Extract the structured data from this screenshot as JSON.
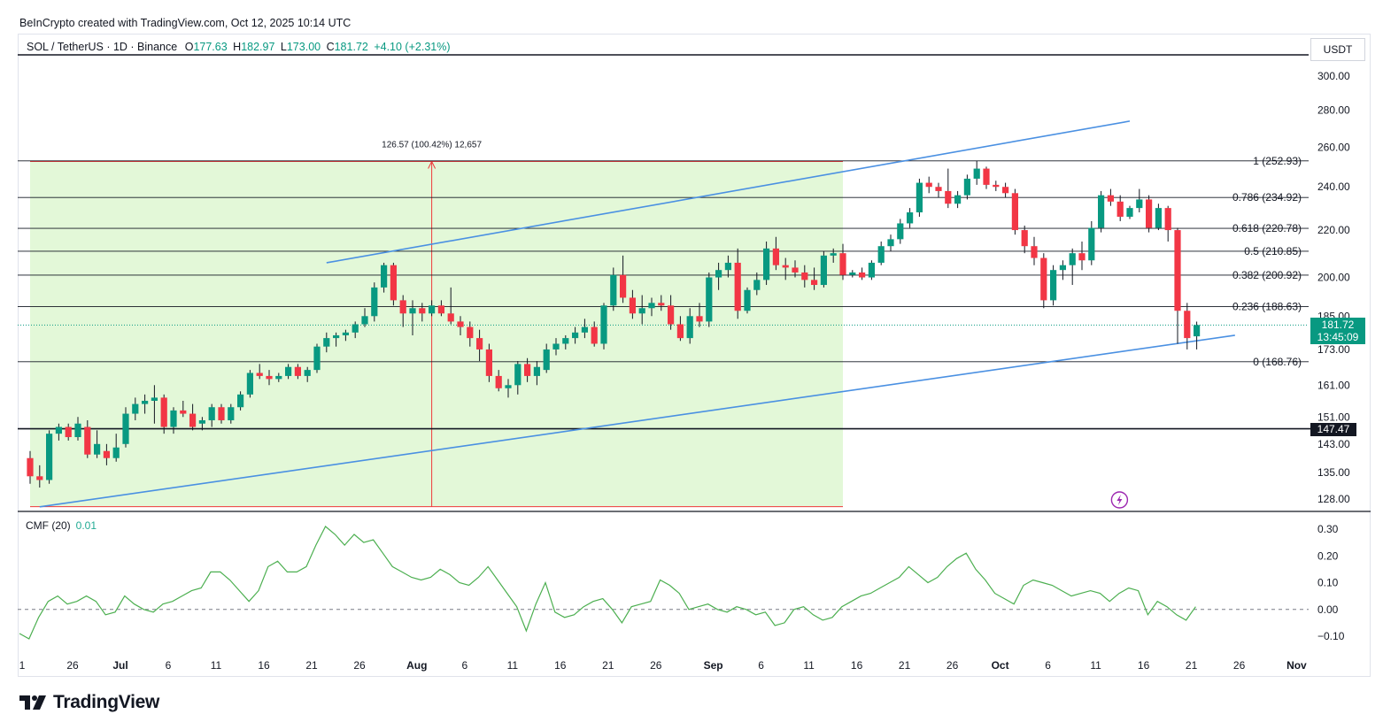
{
  "header": {
    "credit": "BeInCrypto created with TradingView.com, Oct 12, 2025 10:14 UTC",
    "symbol": "SOL / TetherUS · 1D · Binance",
    "open_label": "O",
    "open": "177.63",
    "high_label": "H",
    "high": "182.97",
    "low_label": "L",
    "low": "173.00",
    "close_label": "C",
    "close": "181.72",
    "change": "+4.10 (+2.31%)",
    "currency": "USDT"
  },
  "colors": {
    "up": "#089981",
    "down": "#f23645",
    "up_wick": "#131722",
    "down_wick": "#131722",
    "channel": "#4a90e2",
    "range_fill": "#e3f8d8",
    "range_line": "#ef3a3a",
    "cmf_line": "#4caf50",
    "last_price_bg": "#089981",
    "support_bg": "#131722"
  },
  "chart_data": [
    {
      "type": "candlestick",
      "title": "SOL / TetherUS · 1D · Binance",
      "y_scale": "log",
      "ylim": [
        124,
        318
      ],
      "y_ticks": [
        "300.00",
        "280.00",
        "260.00",
        "240.00",
        "220.00",
        "200.00",
        "185.00",
        "173.00",
        "161.00",
        "151.00",
        "143.00",
        "135.00",
        "128.00"
      ],
      "x_ticks": [
        "1",
        "26",
        "Jul",
        "6",
        "11",
        "16",
        "21",
        "26",
        "Aug",
        "6",
        "11",
        "16",
        "21",
        "26",
        "Sep",
        "6",
        "11",
        "16",
        "21",
        "26",
        "Oct",
        "6",
        "11",
        "16",
        "21",
        "26",
        "Nov"
      ],
      "x_start": "2025-06-21",
      "candles": [
        {
          "o": 139,
          "h": 141,
          "l": 132,
          "c": 134
        },
        {
          "o": 134,
          "h": 137,
          "l": 131,
          "c": 133
        },
        {
          "o": 133,
          "h": 147,
          "l": 132,
          "c": 146
        },
        {
          "o": 146,
          "h": 149,
          "l": 144,
          "c": 148
        },
        {
          "o": 148,
          "h": 149,
          "l": 144,
          "c": 145
        },
        {
          "o": 145,
          "h": 151,
          "l": 144,
          "c": 149
        },
        {
          "o": 148,
          "h": 150,
          "l": 139,
          "c": 140
        },
        {
          "o": 140,
          "h": 147,
          "l": 139,
          "c": 143
        },
        {
          "o": 141,
          "h": 143,
          "l": 137,
          "c": 139
        },
        {
          "o": 139,
          "h": 146,
          "l": 138,
          "c": 142
        },
        {
          "o": 143,
          "h": 154,
          "l": 142,
          "c": 152
        },
        {
          "o": 152,
          "h": 157,
          "l": 150,
          "c": 155
        },
        {
          "o": 155,
          "h": 158,
          "l": 152,
          "c": 156
        },
        {
          "o": 156,
          "h": 161,
          "l": 149,
          "c": 157
        },
        {
          "o": 157,
          "h": 158,
          "l": 146,
          "c": 148
        },
        {
          "o": 148,
          "h": 154,
          "l": 146,
          "c": 153
        },
        {
          "o": 153,
          "h": 156,
          "l": 151,
          "c": 152
        },
        {
          "o": 152,
          "h": 155,
          "l": 147,
          "c": 148
        },
        {
          "o": 149,
          "h": 151,
          "l": 147,
          "c": 150
        },
        {
          "o": 150,
          "h": 155,
          "l": 148,
          "c": 154
        },
        {
          "o": 154,
          "h": 155,
          "l": 149,
          "c": 150
        },
        {
          "o": 150,
          "h": 155,
          "l": 149,
          "c": 154
        },
        {
          "o": 154,
          "h": 159,
          "l": 153,
          "c": 158
        },
        {
          "o": 158,
          "h": 166,
          "l": 157,
          "c": 165
        },
        {
          "o": 165,
          "h": 168,
          "l": 163,
          "c": 164
        },
        {
          "o": 164,
          "h": 166,
          "l": 161,
          "c": 163
        },
        {
          "o": 163,
          "h": 165,
          "l": 162,
          "c": 164
        },
        {
          "o": 164,
          "h": 168,
          "l": 163,
          "c": 167
        },
        {
          "o": 167,
          "h": 168,
          "l": 163,
          "c": 164
        },
        {
          "o": 164,
          "h": 167,
          "l": 162,
          "c": 166
        },
        {
          "o": 166,
          "h": 175,
          "l": 165,
          "c": 174
        },
        {
          "o": 174,
          "h": 179,
          "l": 172,
          "c": 177
        },
        {
          "o": 177,
          "h": 179,
          "l": 174,
          "c": 178
        },
        {
          "o": 178,
          "h": 180,
          "l": 176,
          "c": 179
        },
        {
          "o": 179,
          "h": 183,
          "l": 177,
          "c": 182
        },
        {
          "o": 182,
          "h": 188,
          "l": 181,
          "c": 185
        },
        {
          "o": 185,
          "h": 198,
          "l": 183,
          "c": 196
        },
        {
          "o": 196,
          "h": 206,
          "l": 194,
          "c": 205
        },
        {
          "o": 205,
          "h": 206,
          "l": 189,
          "c": 191
        },
        {
          "o": 191,
          "h": 193,
          "l": 181,
          "c": 186
        },
        {
          "o": 186,
          "h": 191,
          "l": 178,
          "c": 188
        },
        {
          "o": 188,
          "h": 190,
          "l": 183,
          "c": 186
        },
        {
          "o": 186,
          "h": 191,
          "l": 185,
          "c": 189
        },
        {
          "o": 189,
          "h": 191,
          "l": 185,
          "c": 186
        },
        {
          "o": 186,
          "h": 196,
          "l": 182,
          "c": 183
        },
        {
          "o": 183,
          "h": 185,
          "l": 178,
          "c": 181
        },
        {
          "o": 181,
          "h": 183,
          "l": 174,
          "c": 177
        },
        {
          "o": 177,
          "h": 180,
          "l": 169,
          "c": 173
        },
        {
          "o": 173,
          "h": 175,
          "l": 162,
          "c": 164
        },
        {
          "o": 164,
          "h": 166,
          "l": 159,
          "c": 160
        },
        {
          "o": 160,
          "h": 163,
          "l": 157,
          "c": 161
        },
        {
          "o": 161,
          "h": 169,
          "l": 158,
          "c": 168
        },
        {
          "o": 168,
          "h": 170,
          "l": 162,
          "c": 164
        },
        {
          "o": 164,
          "h": 169,
          "l": 161,
          "c": 167
        },
        {
          "o": 166,
          "h": 175,
          "l": 165,
          "c": 173
        },
        {
          "o": 173,
          "h": 177,
          "l": 171,
          "c": 175
        },
        {
          "o": 175,
          "h": 178,
          "l": 173,
          "c": 177
        },
        {
          "o": 177,
          "h": 181,
          "l": 175,
          "c": 179
        },
        {
          "o": 179,
          "h": 184,
          "l": 177,
          "c": 181
        },
        {
          "o": 181,
          "h": 183,
          "l": 174,
          "c": 175
        },
        {
          "o": 175,
          "h": 190,
          "l": 173,
          "c": 189
        },
        {
          "o": 189,
          "h": 204,
          "l": 187,
          "c": 201
        },
        {
          "o": 201,
          "h": 209,
          "l": 190,
          "c": 192
        },
        {
          "o": 192,
          "h": 195,
          "l": 184,
          "c": 186
        },
        {
          "o": 186,
          "h": 193,
          "l": 182,
          "c": 188
        },
        {
          "o": 188,
          "h": 192,
          "l": 185,
          "c": 190
        },
        {
          "o": 190,
          "h": 193,
          "l": 187,
          "c": 189
        },
        {
          "o": 189,
          "h": 193,
          "l": 180,
          "c": 182
        },
        {
          "o": 182,
          "h": 185,
          "l": 176,
          "c": 177
        },
        {
          "o": 177,
          "h": 188,
          "l": 175,
          "c": 185
        },
        {
          "o": 185,
          "h": 190,
          "l": 181,
          "c": 183
        },
        {
          "o": 183,
          "h": 202,
          "l": 181,
          "c": 200
        },
        {
          "o": 200,
          "h": 206,
          "l": 195,
          "c": 203
        },
        {
          "o": 203,
          "h": 209,
          "l": 200,
          "c": 206
        },
        {
          "o": 206,
          "h": 212,
          "l": 184,
          "c": 187
        },
        {
          "o": 187,
          "h": 196,
          "l": 186,
          "c": 195
        },
        {
          "o": 195,
          "h": 202,
          "l": 193,
          "c": 199
        },
        {
          "o": 199,
          "h": 215,
          "l": 197,
          "c": 212
        },
        {
          "o": 212,
          "h": 217,
          "l": 203,
          "c": 205
        },
        {
          "o": 205,
          "h": 208,
          "l": 199,
          "c": 204
        },
        {
          "o": 204,
          "h": 207,
          "l": 200,
          "c": 202
        },
        {
          "o": 202,
          "h": 205,
          "l": 196,
          "c": 199
        },
        {
          "o": 199,
          "h": 204,
          "l": 195,
          "c": 197
        },
        {
          "o": 197,
          "h": 211,
          "l": 196,
          "c": 209
        },
        {
          "o": 209,
          "h": 212,
          "l": 206,
          "c": 210
        },
        {
          "o": 210,
          "h": 214,
          "l": 199,
          "c": 201
        },
        {
          "o": 201,
          "h": 203,
          "l": 200,
          "c": 202
        },
        {
          "o": 202,
          "h": 204,
          "l": 199,
          "c": 200
        },
        {
          "o": 200,
          "h": 207,
          "l": 199,
          "c": 206
        },
        {
          "o": 206,
          "h": 215,
          "l": 205,
          "c": 213
        },
        {
          "o": 213,
          "h": 218,
          "l": 211,
          "c": 216
        },
        {
          "o": 216,
          "h": 225,
          "l": 214,
          "c": 223
        },
        {
          "o": 223,
          "h": 230,
          "l": 221,
          "c": 228
        },
        {
          "o": 228,
          "h": 244,
          "l": 226,
          "c": 242
        },
        {
          "o": 242,
          "h": 245,
          "l": 237,
          "c": 240
        },
        {
          "o": 240,
          "h": 242,
          "l": 235,
          "c": 238
        },
        {
          "o": 238,
          "h": 249,
          "l": 230,
          "c": 232
        },
        {
          "o": 232,
          "h": 238,
          "l": 230,
          "c": 236
        },
        {
          "o": 236,
          "h": 246,
          "l": 234,
          "c": 244
        },
        {
          "o": 244,
          "h": 253,
          "l": 241,
          "c": 249
        },
        {
          "o": 249,
          "h": 250,
          "l": 239,
          "c": 241
        },
        {
          "o": 241,
          "h": 243,
          "l": 238,
          "c": 240
        },
        {
          "o": 240,
          "h": 242,
          "l": 235,
          "c": 237
        },
        {
          "o": 237,
          "h": 239,
          "l": 218,
          "c": 220
        },
        {
          "o": 220,
          "h": 222,
          "l": 210,
          "c": 213
        },
        {
          "o": 213,
          "h": 217,
          "l": 205,
          "c": 208
        },
        {
          "o": 208,
          "h": 210,
          "l": 188,
          "c": 191
        },
        {
          "o": 191,
          "h": 205,
          "l": 189,
          "c": 203
        },
        {
          "o": 203,
          "h": 207,
          "l": 199,
          "c": 205
        },
        {
          "o": 205,
          "h": 212,
          "l": 197,
          "c": 210
        },
        {
          "o": 210,
          "h": 215,
          "l": 203,
          "c": 207
        },
        {
          "o": 207,
          "h": 224,
          "l": 205,
          "c": 221
        },
        {
          "o": 221,
          "h": 238,
          "l": 219,
          "c": 236
        },
        {
          "o": 236,
          "h": 239,
          "l": 231,
          "c": 233
        },
        {
          "o": 233,
          "h": 236,
          "l": 224,
          "c": 226
        },
        {
          "o": 226,
          "h": 231,
          "l": 225,
          "c": 230
        },
        {
          "o": 230,
          "h": 239,
          "l": 228,
          "c": 234
        },
        {
          "o": 234,
          "h": 236,
          "l": 219,
          "c": 221
        },
        {
          "o": 221,
          "h": 232,
          "l": 220,
          "c": 230
        },
        {
          "o": 230,
          "h": 231,
          "l": 215,
          "c": 220
        },
        {
          "o": 220,
          "h": 221,
          "l": 175,
          "c": 187
        },
        {
          "o": 187,
          "h": 190,
          "l": 173,
          "c": 177
        },
        {
          "o": 177.63,
          "h": 182.97,
          "l": 173.0,
          "c": 181.72
        }
      ],
      "fib_levels": [
        {
          "label": "1 (252.93)",
          "value": 252.93
        },
        {
          "label": "0.786 (234.92)",
          "value": 234.92
        },
        {
          "label": "0.618 (220.78)",
          "value": 220.78
        },
        {
          "label": "0.5 (210.85)",
          "value": 210.85
        },
        {
          "label": "0.382 (200.92)",
          "value": 200.92
        },
        {
          "label": "0.236 (188.63)",
          "value": 188.63
        },
        {
          "label": "0 (168.76)",
          "value": 168.76
        }
      ],
      "support_level": {
        "label": "147.47",
        "value": 147.47
      },
      "last_price": {
        "value": "181.72",
        "countdown": "13:45:09"
      },
      "range_measure": {
        "label": "126.57 (100.42%) 12,657",
        "from": 126.05,
        "to": 252.62
      },
      "rising_channel": {
        "upper": [
          {
            "date": "2025-07-22",
            "value": 206
          },
          {
            "date": "2025-10-14",
            "value": 274
          }
        ],
        "lower": [
          {
            "date": "2025-06-22",
            "value": 126
          },
          {
            "date": "2025-10-25",
            "value": 178
          }
        ]
      },
      "event_icon": "lightning-icon"
    },
    {
      "type": "line",
      "title": "CMF (20)",
      "current": "0.01",
      "ylim": [
        -0.14,
        0.33
      ],
      "y_ticks": [
        "0.30",
        "0.20",
        "0.10",
        "0.00",
        "−0.10"
      ],
      "zero_line": "dashed",
      "values": [
        -0.09,
        -0.11,
        -0.03,
        0.03,
        0.05,
        0.02,
        0.03,
        0.05,
        0.03,
        -0.02,
        -0.01,
        0.05,
        0.02,
        0.0,
        -0.01,
        0.02,
        0.03,
        0.05,
        0.07,
        0.08,
        0.14,
        0.14,
        0.11,
        0.07,
        0.03,
        0.07,
        0.16,
        0.18,
        0.14,
        0.14,
        0.16,
        0.24,
        0.31,
        0.28,
        0.24,
        0.28,
        0.25,
        0.26,
        0.21,
        0.16,
        0.14,
        0.12,
        0.11,
        0.12,
        0.15,
        0.13,
        0.1,
        0.09,
        0.12,
        0.16,
        0.11,
        0.06,
        0.01,
        -0.08,
        0.02,
        0.1,
        -0.01,
        -0.03,
        -0.02,
        0.01,
        0.03,
        0.04,
        0.0,
        -0.05,
        0.01,
        0.02,
        0.03,
        0.11,
        0.09,
        0.06,
        0.0,
        0.01,
        0.02,
        0.0,
        -0.01,
        0.01,
        0.0,
        -0.02,
        -0.01,
        -0.06,
        -0.05,
        0.0,
        0.01,
        -0.02,
        -0.04,
        -0.03,
        0.01,
        0.03,
        0.05,
        0.06,
        0.08,
        0.1,
        0.12,
        0.16,
        0.13,
        0.1,
        0.12,
        0.16,
        0.19,
        0.21,
        0.15,
        0.11,
        0.06,
        0.04,
        0.02,
        0.09,
        0.11,
        0.1,
        0.09,
        0.07,
        0.05,
        0.06,
        0.07,
        0.06,
        0.03,
        0.06,
        0.08,
        0.07,
        -0.02,
        0.03,
        0.01,
        -0.02,
        -0.04,
        0.01
      ]
    }
  ],
  "footer": {
    "brand": "TradingView"
  }
}
